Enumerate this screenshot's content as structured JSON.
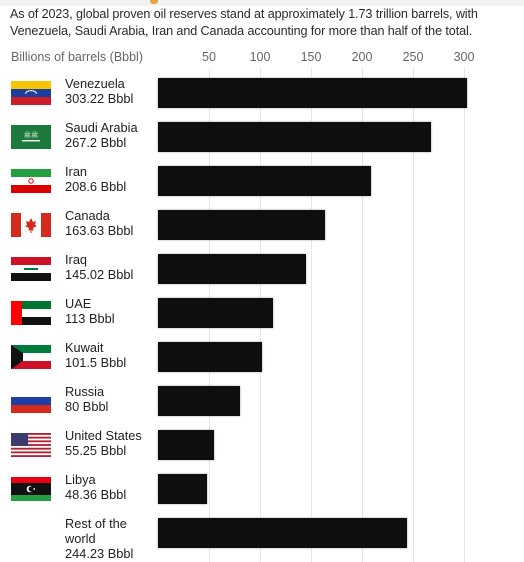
{
  "subtitle": "As of 2023, global proven oil reserves stand at approximately 1.73 trillion barrels, with Venezuela, Saudi Arabia, Iran and Canada accounting for more than half of the total.",
  "chart_data": {
    "type": "bar",
    "orientation": "horizontal",
    "title": "",
    "axis_title": "Billions of barrels (Bbbl)",
    "xlim": [
      0,
      300
    ],
    "ticks": [
      "50",
      "100",
      "150",
      "200",
      "250",
      "300"
    ],
    "tick_values": [
      50,
      100,
      150,
      200,
      250,
      300
    ],
    "bar_color": "#0e0e0e",
    "categories": [
      {
        "name": "Venezuela",
        "label": "303.22 Bbbl",
        "value": 303.22,
        "flag": "venezuela-flag-icon"
      },
      {
        "name": "Saudi Arabia",
        "label": "267.2 Bbbl",
        "value": 267.2,
        "flag": "saudi-arabia-flag-icon"
      },
      {
        "name": "Iran",
        "label": "208.6 Bbbl",
        "value": 208.6,
        "flag": "iran-flag-icon"
      },
      {
        "name": "Canada",
        "label": "163.63 Bbbl",
        "value": 163.63,
        "flag": "canada-flag-icon"
      },
      {
        "name": "Iraq",
        "label": "145.02 Bbbl",
        "value": 145.02,
        "flag": "iraq-flag-icon"
      },
      {
        "name": "UAE",
        "label": "113 Bbbl",
        "value": 113,
        "flag": "uae-flag-icon"
      },
      {
        "name": "Kuwait",
        "label": "101.5 Bbbl",
        "value": 101.5,
        "flag": "kuwait-flag-icon"
      },
      {
        "name": "Russia",
        "label": "80 Bbbl",
        "value": 80,
        "flag": "russia-flag-icon"
      },
      {
        "name": "United States",
        "label": "55.25 Bbbl",
        "value": 55.25,
        "flag": "united-states-flag-icon"
      },
      {
        "name": "Libya",
        "label": "48.36 Bbbl",
        "value": 48.36,
        "flag": "libya-flag-icon"
      },
      {
        "name": "Rest of the world",
        "label": "244.23 Bbbl",
        "value": 244.23,
        "flag": ""
      }
    ]
  }
}
